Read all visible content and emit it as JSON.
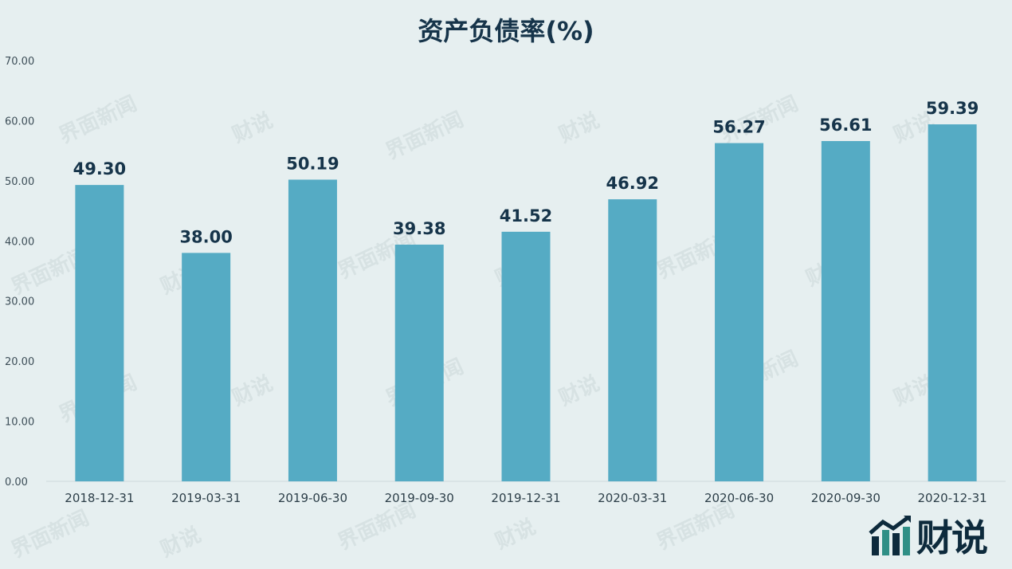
{
  "chart_data": {
    "type": "bar",
    "title": "资产负债率(%)",
    "categories": [
      "2018-12-31",
      "2019-03-31",
      "2019-06-30",
      "2019-09-30",
      "2019-12-31",
      "2020-03-31",
      "2020-06-30",
      "2020-09-30",
      "2020-12-31"
    ],
    "values": [
      49.3,
      38.0,
      50.19,
      39.38,
      41.52,
      46.92,
      56.27,
      56.61,
      59.39
    ],
    "value_labels": [
      "49.30",
      "38.00",
      "50.19",
      "39.38",
      "41.52",
      "46.92",
      "56.27",
      "56.61",
      "59.39"
    ],
    "yticks": [
      "0.00",
      "10.00",
      "20.00",
      "30.00",
      "40.00",
      "50.00",
      "60.00",
      "70.00"
    ],
    "ylim": [
      0,
      70
    ],
    "grid": false,
    "bar_color": "#55abc4"
  },
  "logo": {
    "text": "财说"
  },
  "watermark": {
    "text_a": "界面新闻",
    "text_b": "财说"
  }
}
